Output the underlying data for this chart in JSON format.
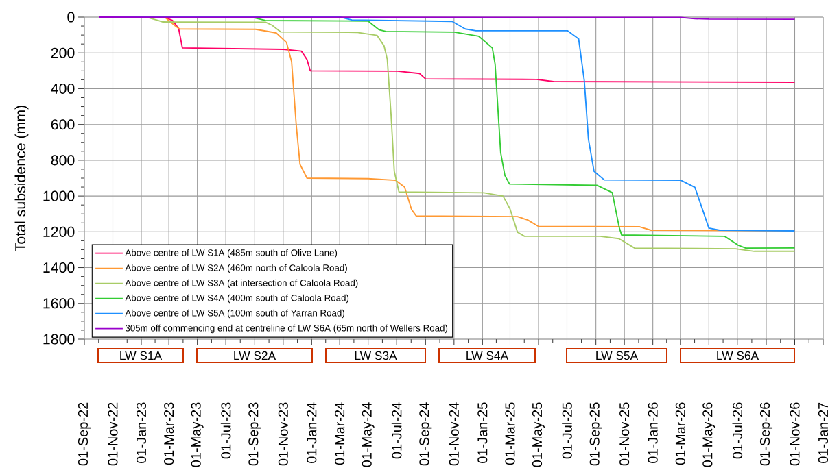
{
  "chart_data": {
    "type": "line",
    "ylabel": "Total subsidence (mm)",
    "ylim": [
      1800,
      0
    ],
    "yticks": [
      0,
      200,
      400,
      600,
      800,
      1000,
      1200,
      1400,
      1600,
      1800
    ],
    "xlim": [
      "2022-09-01",
      "2027-01-01"
    ],
    "xticks": [
      {
        "value": "2022-09-01",
        "label": "01-Sep-22"
      },
      {
        "value": "2022-11-01",
        "label": "01-Nov-22"
      },
      {
        "value": "2023-01-01",
        "label": "01-Jan-23"
      },
      {
        "value": "2023-03-01",
        "label": "01-Mar-23"
      },
      {
        "value": "2023-05-01",
        "label": "01-May-23"
      },
      {
        "value": "2023-07-01",
        "label": "01-Jul-23"
      },
      {
        "value": "2023-09-01",
        "label": "01-Sep-23"
      },
      {
        "value": "2023-11-01",
        "label": "01-Nov-23"
      },
      {
        "value": "2024-01-01",
        "label": "01-Jan-24"
      },
      {
        "value": "2024-03-01",
        "label": "01-Mar-24"
      },
      {
        "value": "2024-05-01",
        "label": "01-May-24"
      },
      {
        "value": "2024-07-01",
        "label": "01-Jul-24"
      },
      {
        "value": "2024-09-01",
        "label": "01-Sep-24"
      },
      {
        "value": "2024-11-01",
        "label": "01-Nov-24"
      },
      {
        "value": "2025-01-01",
        "label": "01-Jan-25"
      },
      {
        "value": "2025-03-01",
        "label": "01-Mar-25"
      },
      {
        "value": "2025-05-01",
        "label": "01-May-25"
      },
      {
        "value": "2025-07-01",
        "label": "01-Jul-25"
      },
      {
        "value": "2025-09-01",
        "label": "01-Sep-25"
      },
      {
        "value": "2025-11-01",
        "label": "01-Nov-25"
      },
      {
        "value": "2026-01-01",
        "label": "01-Jan-26"
      },
      {
        "value": "2026-03-01",
        "label": "01-Mar-26"
      },
      {
        "value": "2026-05-01",
        "label": "01-May-26"
      },
      {
        "value": "2026-07-01",
        "label": "01-Jul-26"
      },
      {
        "value": "2026-09-01",
        "label": "01-Sep-26"
      },
      {
        "value": "2026-11-01",
        "label": "01-Nov-26"
      },
      {
        "value": "2027-01-01",
        "label": "01-Jan-27"
      }
    ],
    "grid": true,
    "legend": "bottom left",
    "series": [
      {
        "name": "Above centre of LW S1A (485m south of Olive Lane)",
        "color": "#ff0066",
        "x": [
          "2022-10-03",
          "2023-02-21",
          "2023-03-09",
          "2023-03-22",
          "2023-03-30",
          "2023-11-01",
          "2023-12-10",
          "2023-12-22",
          "2023-12-29",
          "2024-07-03",
          "2024-08-19",
          "2024-09-01",
          "2025-04-27",
          "2025-06-02",
          "2026-11-01"
        ],
        "values": [
          0,
          2,
          19,
          64,
          172,
          180,
          190,
          237,
          300,
          302,
          315,
          345,
          348,
          360,
          364
        ]
      },
      {
        "name": "Above centre of LW S2A (460m north of Caloola Road)",
        "color": "#ff9933",
        "x": [
          "2022-10-03",
          "2023-02-21",
          "2023-03-15",
          "2023-03-24",
          "2023-09-03",
          "2023-10-17",
          "2023-11-08",
          "2023-11-19",
          "2023-11-29",
          "2023-12-07",
          "2023-12-22",
          "2024-05-01",
          "2024-06-29",
          "2024-07-18",
          "2024-08-02",
          "2024-08-12",
          "2025-03-17",
          "2025-04-08",
          "2025-05-01",
          "2025-12-04",
          "2025-12-28",
          "2026-11-01"
        ],
        "values": [
          0,
          2,
          50,
          66,
          68,
          88,
          141,
          249,
          605,
          823,
          900,
          903,
          912,
          950,
          1075,
          1111,
          1115,
          1134,
          1170,
          1172,
          1191,
          1195
        ]
      },
      {
        "name": "Above centre of LW S3A (at intersection of Caloola Road)",
        "color": "#a8cc66",
        "x": [
          "2022-10-03",
          "2023-01-15",
          "2023-02-06",
          "2023-02-16",
          "2023-09-24",
          "2023-10-08",
          "2023-10-27",
          "2024-04-06",
          "2024-05-20",
          "2024-06-04",
          "2024-06-11",
          "2024-06-19",
          "2024-06-26",
          "2024-07-06",
          "2025-01-04",
          "2025-02-14",
          "2025-03-01",
          "2025-03-17",
          "2025-04-01",
          "2025-09-10",
          "2025-10-20",
          "2025-11-23",
          "2026-06-27",
          "2026-08-06",
          "2026-11-01"
        ],
        "values": [
          0,
          2,
          19,
          27,
          28,
          45,
          83,
          85,
          102,
          160,
          236,
          542,
          862,
          977,
          982,
          1000,
          1072,
          1202,
          1225,
          1225,
          1238,
          1291,
          1295,
          1309,
          1309
        ]
      },
      {
        "name": "Above centre of LW S4A (400m south of Caloola Road)",
        "color": "#33cc33",
        "x": [
          "2022-10-03",
          "2023-08-30",
          "2023-09-24",
          "2024-05-01",
          "2024-05-24",
          "2024-06-08",
          "2024-11-02",
          "2024-12-24",
          "2025-01-22",
          "2025-01-28",
          "2025-02-09",
          "2025-02-18",
          "2025-02-28",
          "2025-09-03",
          "2025-10-06",
          "2025-10-21",
          "2025-10-26",
          "2026-06-04",
          "2026-07-03",
          "2026-07-19",
          "2026-11-01"
        ],
        "values": [
          0,
          3,
          19,
          22,
          70,
          80,
          84,
          107,
          172,
          263,
          758,
          885,
          933,
          940,
          981,
          1176,
          1218,
          1225,
          1275,
          1291,
          1290
        ]
      },
      {
        "name": "Above centre of LW S5A (100m south of Yarran Road)",
        "color": "#1e90ff",
        "x": [
          "2022-10-03",
          "2024-03-03",
          "2024-03-27",
          "2024-10-28",
          "2024-11-25",
          "2024-12-18",
          "2025-07-02",
          "2025-07-26",
          "2025-08-07",
          "2025-08-16",
          "2025-08-28",
          "2025-09-19",
          "2026-03-02",
          "2026-04-01",
          "2026-04-19",
          "2026-05-01",
          "2026-05-24",
          "2026-11-01"
        ],
        "values": [
          0,
          0,
          16,
          24,
          66,
          76,
          76,
          122,
          353,
          682,
          862,
          910,
          912,
          951,
          1087,
          1179,
          1191,
          1195
        ]
      },
      {
        "name": "305m off commencing end at centreline of LW S6A (65m north of Wellers Road)",
        "color": "#9900cc",
        "x": [
          "2022-10-03",
          "2026-03-02",
          "2026-04-01",
          "2026-05-01",
          "2026-11-01"
        ],
        "values": [
          0,
          2,
          9,
          11,
          12
        ]
      }
    ],
    "annotations": [
      "LW S1A",
      "LW S2A",
      "LW S3A",
      "LW S4A",
      "LW S5A",
      "LW S6A"
    ]
  }
}
